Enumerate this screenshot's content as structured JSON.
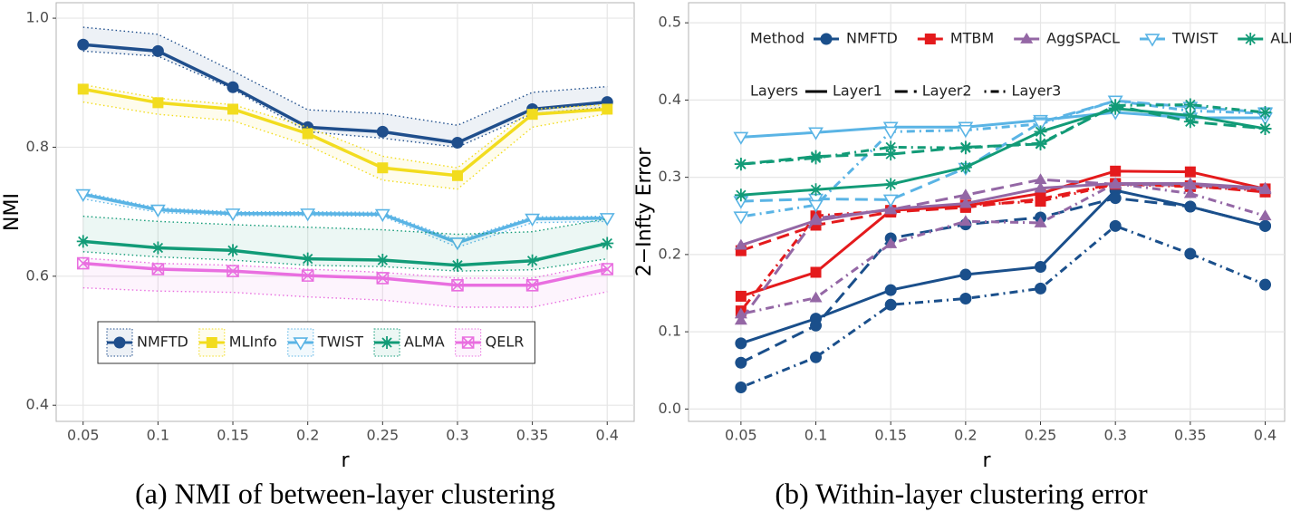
{
  "chart_data": [
    {
      "type": "line",
      "caption": "(a) NMI of between-layer clustering",
      "x_label": "r",
      "y_label": "NMI",
      "x": [
        0.05,
        0.1,
        0.15,
        0.2,
        0.25,
        0.3,
        0.35,
        0.4
      ],
      "xlim": [
        0.032,
        0.418
      ],
      "xticks": [
        0.05,
        0.1,
        0.15,
        0.2,
        0.25,
        0.3,
        0.35,
        0.4
      ],
      "ylim": [
        0.375,
        1.024
      ],
      "yticks": [
        0.4,
        0.6,
        0.8,
        {
          "value": 1,
          "label": "1.0"
        }
      ],
      "grid": true,
      "legend_position": "bottom-left",
      "series": [
        {
          "name": "NMFTD",
          "color": "#1f4e8c",
          "marker": "circle",
          "values": [
            0.959,
            0.949,
            0.893,
            0.831,
            0.824,
            0.807,
            0.859,
            0.87
          ],
          "upper": [
            0.986,
            0.975,
            0.918,
            0.858,
            0.852,
            0.834,
            0.885,
            0.894
          ],
          "lower": [
            0.949,
            0.941,
            0.89,
            0.824,
            0.814,
            0.8,
            0.852,
            0.862
          ]
        },
        {
          "name": "MLInfo",
          "color": "#f2dc1e",
          "marker": "square",
          "values": [
            0.89,
            0.869,
            0.859,
            0.821,
            0.768,
            0.756,
            0.851,
            0.859
          ],
          "upper": [
            0.897,
            0.876,
            0.866,
            0.831,
            0.786,
            0.768,
            0.859,
            0.866
          ],
          "lower": [
            0.87,
            0.851,
            0.841,
            0.803,
            0.749,
            0.735,
            0.831,
            0.852
          ]
        },
        {
          "name": "TWIST",
          "color": "#5ab4e5",
          "marker": "triangle-down-open",
          "values": [
            0.727,
            0.703,
            0.697,
            0.697,
            0.696,
            0.652,
            0.689,
            0.69
          ],
          "upper": [
            0.73,
            0.706,
            0.7,
            0.7,
            0.699,
            0.656,
            0.692,
            0.693
          ],
          "lower": [
            0.72,
            0.699,
            0.694,
            0.694,
            0.693,
            0.645,
            0.683,
            0.685
          ]
        },
        {
          "name": "ALMA",
          "color": "#129b77",
          "marker": "asterisk",
          "values": [
            0.654,
            0.644,
            0.64,
            0.627,
            0.625,
            0.617,
            0.624,
            0.651
          ],
          "upper": [
            0.693,
            0.685,
            0.68,
            0.676,
            0.672,
            0.665,
            0.669,
            0.689
          ],
          "lower": [
            0.638,
            0.63,
            0.625,
            0.617,
            0.615,
            0.608,
            0.61,
            0.627
          ]
        },
        {
          "name": "QELR",
          "color": "#e96fe0",
          "marker": "square-x",
          "values": [
            0.62,
            0.611,
            0.608,
            0.601,
            0.597,
            0.586,
            0.586,
            0.611
          ],
          "upper": [
            0.628,
            0.62,
            0.617,
            0.611,
            0.606,
            0.597,
            0.597,
            0.621
          ],
          "lower": [
            0.582,
            0.577,
            0.575,
            0.568,
            0.563,
            0.552,
            0.552,
            0.576
          ]
        }
      ]
    },
    {
      "type": "line",
      "caption": "(b) Within-layer clustering error",
      "x_label": "r",
      "y_label": "2−Infty Error",
      "x": [
        0.05,
        0.1,
        0.15,
        0.2,
        0.25,
        0.3,
        0.35,
        0.4
      ],
      "xlim": [
        0.015,
        0.413
      ],
      "xticks": [
        0.05,
        0.1,
        0.15,
        0.2,
        0.25,
        0.3,
        0.35,
        0.4
      ],
      "ylim": [
        -0.016,
        0.526
      ],
      "yticks": [
        {
          "value": 0,
          "label": "0.0"
        },
        0.1,
        0.2,
        0.3,
        0.4,
        0.5
      ],
      "grid": true,
      "legend_position": "top",
      "method_title": "Method",
      "layer_title": "Layers",
      "methods": [
        {
          "name": "NMFTD",
          "color": "#1a4f8b",
          "marker": "circle"
        },
        {
          "name": "MTBM",
          "color": "#e41a1c",
          "marker": "square"
        },
        {
          "name": "AggSPACL",
          "color": "#9467a5",
          "marker": "triangle"
        },
        {
          "name": "TWIST",
          "color": "#5ab4e5",
          "marker": "triangle-down-open"
        },
        {
          "name": "ALMA",
          "color": "#129b77",
          "marker": "asterisk"
        }
      ],
      "layers": [
        {
          "name": "Layer1",
          "linestyle": "solid"
        },
        {
          "name": "Layer2",
          "linestyle": "dashed"
        },
        {
          "name": "Layer3",
          "linestyle": "dotdash"
        }
      ],
      "series": [
        {
          "method": 0,
          "layer": 0,
          "values": [
            0.085,
            0.117,
            0.154,
            0.174,
            0.184,
            0.283,
            0.262,
            0.237
          ]
        },
        {
          "method": 0,
          "layer": 1,
          "values": [
            0.06,
            0.108,
            0.221,
            0.239,
            0.248,
            0.273,
            0.262,
            0.237
          ]
        },
        {
          "method": 0,
          "layer": 2,
          "values": [
            0.028,
            0.067,
            0.135,
            0.143,
            0.156,
            0.237,
            0.201,
            0.161
          ]
        },
        {
          "method": 1,
          "layer": 0,
          "values": [
            0.146,
            0.177,
            0.257,
            0.263,
            0.279,
            0.308,
            0.307,
            0.285
          ]
        },
        {
          "method": 1,
          "layer": 1,
          "values": [
            0.205,
            0.238,
            0.255,
            0.261,
            0.272,
            0.292,
            0.289,
            0.281
          ]
        },
        {
          "method": 1,
          "layer": 2,
          "values": [
            0.127,
            0.25,
            0.257,
            0.264,
            0.269,
            0.291,
            0.288,
            0.283
          ]
        },
        {
          "method": 2,
          "layer": 0,
          "values": [
            0.212,
            0.244,
            0.259,
            0.266,
            0.286,
            0.292,
            0.292,
            0.286
          ]
        },
        {
          "method": 2,
          "layer": 1,
          "values": [
            0.115,
            0.247,
            0.258,
            0.277,
            0.297,
            0.291,
            0.29,
            0.284
          ]
        },
        {
          "method": 2,
          "layer": 2,
          "values": [
            0.123,
            0.144,
            0.214,
            0.243,
            0.241,
            0.292,
            0.279,
            0.25
          ]
        },
        {
          "method": 3,
          "layer": 0,
          "values": [
            0.352,
            0.358,
            0.365,
            0.365,
            0.374,
            0.384,
            0.377,
            0.377
          ]
        },
        {
          "method": 3,
          "layer": 1,
          "values": [
            0.269,
            0.272,
            0.271,
            0.312,
            0.371,
            0.399,
            0.391,
            0.384
          ]
        },
        {
          "method": 3,
          "layer": 2,
          "values": [
            0.249,
            0.264,
            0.359,
            0.361,
            0.369,
            0.399,
            0.386,
            0.383
          ]
        },
        {
          "method": 4,
          "layer": 0,
          "values": [
            0.277,
            0.284,
            0.291,
            0.313,
            0.359,
            0.389,
            0.38,
            0.363
          ]
        },
        {
          "method": 4,
          "layer": 1,
          "values": [
            0.317,
            0.327,
            0.33,
            0.339,
            0.343,
            0.393,
            0.372,
            0.363
          ]
        },
        {
          "method": 4,
          "layer": 2,
          "values": [
            0.317,
            0.325,
            0.339,
            0.338,
            0.344,
            0.393,
            0.394,
            0.384
          ]
        }
      ]
    }
  ]
}
